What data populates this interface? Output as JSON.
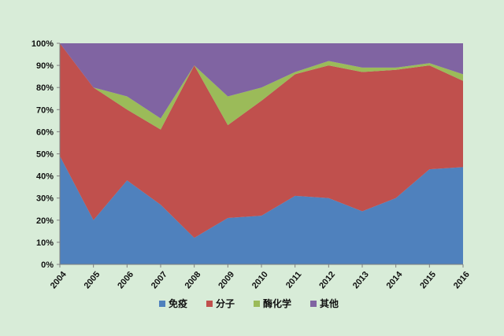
{
  "chart_data": {
    "type": "area",
    "stacked": true,
    "percent": true,
    "title": "",
    "xlabel": "",
    "ylabel": "",
    "ylim": [
      0,
      100
    ],
    "y_ticks": [
      "0%",
      "10%",
      "20%",
      "30%",
      "40%",
      "50%",
      "60%",
      "70%",
      "80%",
      "90%",
      "100%"
    ],
    "x": [
      "2004",
      "2005",
      "2006",
      "2007",
      "2008",
      "2009",
      "2010",
      "2011",
      "2012",
      "2013",
      "2014",
      "2015",
      "2016"
    ],
    "series": [
      {
        "name": "免疫",
        "color": "#4f81bd",
        "values": [
          49,
          20,
          38,
          27,
          12,
          21,
          22,
          31,
          30,
          24,
          30,
          43,
          44
        ]
      },
      {
        "name": "分子",
        "color": "#c0504d",
        "values": [
          51,
          60,
          32,
          34,
          78,
          42,
          52,
          55,
          60,
          63,
          58,
          47,
          39
        ]
      },
      {
        "name": "酶化学",
        "color": "#9bbb59",
        "values": [
          0,
          0,
          6,
          5,
          0,
          13,
          6,
          1,
          2,
          2,
          1,
          1,
          3
        ]
      },
      {
        "name": "其他",
        "color": "#8064a2",
        "values": [
          0,
          20,
          24,
          34,
          10,
          24,
          20,
          13,
          8,
          11,
          11,
          9,
          14
        ]
      }
    ],
    "legend": "bottom",
    "grid": false,
    "plot_background": "#c8dfe8",
    "page_background": "#d8ecd8"
  }
}
